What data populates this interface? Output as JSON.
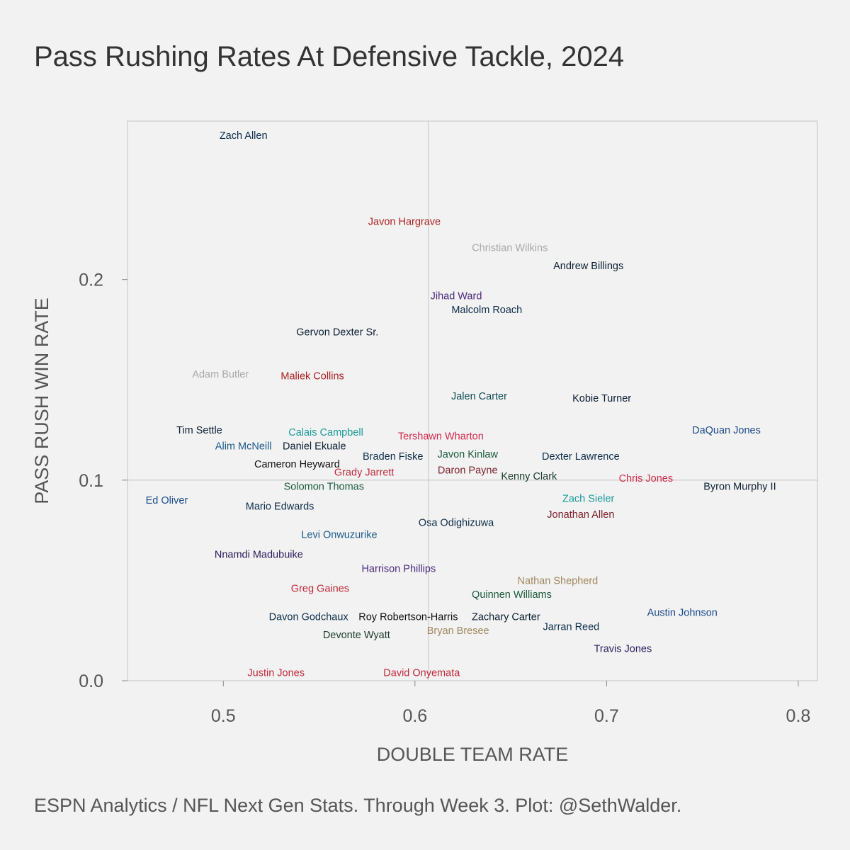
{
  "chart_data": {
    "type": "scatter",
    "title": "Pass Rushing Rates At Defensive Tackle, 2024",
    "xlabel": "DOUBLE TEAM RATE",
    "ylabel": "PASS RUSH WIN RATE",
    "xlim": [
      0.45,
      0.81
    ],
    "ylim": [
      0.0,
      0.279
    ],
    "xticks": [
      0.5,
      0.6,
      0.7,
      0.8
    ],
    "xtick_labels": [
      "0.5",
      "0.6",
      "0.7",
      "0.8"
    ],
    "yticks": [
      0.0,
      0.1,
      0.2
    ],
    "ytick_labels": [
      "0.0",
      "0.1",
      "0.2"
    ],
    "reference_lines": {
      "x": 0.607,
      "y": 0.1
    },
    "grid": false,
    "legend": "none",
    "points": [
      {
        "name": "Zach Allen",
        "x": 0.5105,
        "y": 0.272,
        "color": "#0b2d4a"
      },
      {
        "name": "Javon Hargrave",
        "x": 0.5945,
        "y": 0.229,
        "color": "#aa1f1f"
      },
      {
        "name": "Christian Wilkins",
        "x": 0.6495,
        "y": 0.216,
        "color": "#a8a8a8"
      },
      {
        "name": "Andrew Billings",
        "x": 0.6905,
        "y": 0.207,
        "color": "#0b1e33"
      },
      {
        "name": "Jihad Ward",
        "x": 0.6215,
        "y": 0.192,
        "color": "#4b2a7e"
      },
      {
        "name": "Malcolm Roach",
        "x": 0.6375,
        "y": 0.185,
        "color": "#0b2d4a"
      },
      {
        "name": "Gervon Dexter Sr.",
        "x": 0.5595,
        "y": 0.174,
        "color": "#0b1e33"
      },
      {
        "name": "Adam Butler",
        "x": 0.4985,
        "y": 0.153,
        "color": "#a8a8a8"
      },
      {
        "name": "Maliek Collins",
        "x": 0.5465,
        "y": 0.152,
        "color": "#aa1f1f"
      },
      {
        "name": "Jalen Carter",
        "x": 0.6335,
        "y": 0.142,
        "color": "#0f4b55"
      },
      {
        "name": "Kobie Turner",
        "x": 0.6975,
        "y": 0.141,
        "color": "#0b1e33"
      },
      {
        "name": "Tim Settle",
        "x": 0.4875,
        "y": 0.125,
        "color": "#0b1e33"
      },
      {
        "name": "DaQuan Jones",
        "x": 0.7625,
        "y": 0.125,
        "color": "#1a4a8a"
      },
      {
        "name": "Calais Campbell",
        "x": 0.5535,
        "y": 0.124,
        "color": "#1a9a9a"
      },
      {
        "name": "Tershawn Wharton",
        "x": 0.6135,
        "y": 0.122,
        "color": "#d12a4a"
      },
      {
        "name": "Alim McNeill",
        "x": 0.5105,
        "y": 0.117,
        "color": "#1a5a8a"
      },
      {
        "name": "Daniel Ekuale",
        "x": 0.5475,
        "y": 0.117,
        "color": "#0b1e33"
      },
      {
        "name": "Javon Kinlaw",
        "x": 0.6275,
        "y": 0.113,
        "color": "#1a5a3a"
      },
      {
        "name": "Braden Fiske",
        "x": 0.5885,
        "y": 0.112,
        "color": "#0b2d4a"
      },
      {
        "name": "Dexter Lawrence",
        "x": 0.6865,
        "y": 0.112,
        "color": "#0b2d4a"
      },
      {
        "name": "Cameron Heyward",
        "x": 0.5385,
        "y": 0.108,
        "color": "#101010"
      },
      {
        "name": "Grady Jarrett",
        "x": 0.5735,
        "y": 0.104,
        "color": "#c0283a"
      },
      {
        "name": "Daron Payne",
        "x": 0.6275,
        "y": 0.105,
        "color": "#7a1f2a"
      },
      {
        "name": "Kenny Clark",
        "x": 0.6595,
        "y": 0.102,
        "color": "#1a3a2a"
      },
      {
        "name": "Chris Jones",
        "x": 0.7205,
        "y": 0.101,
        "color": "#d12a4a"
      },
      {
        "name": "Solomon Thomas",
        "x": 0.5525,
        "y": 0.097,
        "color": "#1a5a3a"
      },
      {
        "name": "Byron Murphy II",
        "x": 0.7695,
        "y": 0.097,
        "color": "#0b1e33"
      },
      {
        "name": "Zach Sieler",
        "x": 0.6905,
        "y": 0.091,
        "color": "#1a9a9a"
      },
      {
        "name": "Ed Oliver",
        "x": 0.4705,
        "y": 0.09,
        "color": "#1a4a8a"
      },
      {
        "name": "Mario Edwards",
        "x": 0.5295,
        "y": 0.087,
        "color": "#0b2d4a"
      },
      {
        "name": "Jonathan Allen",
        "x": 0.6865,
        "y": 0.083,
        "color": "#7a1f2a"
      },
      {
        "name": "Osa Odighizuwa",
        "x": 0.6215,
        "y": 0.079,
        "color": "#0b2d4a"
      },
      {
        "name": "Levi Onwuzurike",
        "x": 0.5605,
        "y": 0.073,
        "color": "#1a5a8a"
      },
      {
        "name": "Nnamdi Madubuike",
        "x": 0.5185,
        "y": 0.063,
        "color": "#2a1a5a"
      },
      {
        "name": "Harrison Phillips",
        "x": 0.5915,
        "y": 0.056,
        "color": "#4b2a7e"
      },
      {
        "name": "Nathan Shepherd",
        "x": 0.6745,
        "y": 0.05,
        "color": "#a0865a"
      },
      {
        "name": "Greg Gaines",
        "x": 0.5505,
        "y": 0.046,
        "color": "#c0283a"
      },
      {
        "name": "Quinnen Williams",
        "x": 0.6505,
        "y": 0.043,
        "color": "#1a5a3a"
      },
      {
        "name": "Davon Godchaux",
        "x": 0.5445,
        "y": 0.032,
        "color": "#0b2d4a"
      },
      {
        "name": "Roy Robertson-Harris",
        "x": 0.5965,
        "y": 0.032,
        "color": "#101010"
      },
      {
        "name": "Zachary Carter",
        "x": 0.6475,
        "y": 0.032,
        "color": "#0b1e33"
      },
      {
        "name": "Austin Johnson",
        "x": 0.7395,
        "y": 0.034,
        "color": "#1a4a8a"
      },
      {
        "name": "Jarran Reed",
        "x": 0.6815,
        "y": 0.027,
        "color": "#0b2d4a"
      },
      {
        "name": "Bryan Bresee",
        "x": 0.6225,
        "y": 0.025,
        "color": "#a0865a"
      },
      {
        "name": "Devonte Wyatt",
        "x": 0.5695,
        "y": 0.023,
        "color": "#1a3a2a"
      },
      {
        "name": "Travis Jones",
        "x": 0.7085,
        "y": 0.016,
        "color": "#2a1a5a"
      },
      {
        "name": "Justin Jones",
        "x": 0.5275,
        "y": 0.004,
        "color": "#c0283a"
      },
      {
        "name": "David Onyemata",
        "x": 0.6035,
        "y": 0.004,
        "color": "#c0283a"
      }
    ]
  },
  "caption": "ESPN Analytics / NFL Next Gen Stats. Through Week 3. Plot: @SethWalder."
}
